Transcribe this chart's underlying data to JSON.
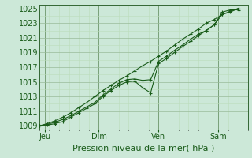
{
  "xlabel": "Pression niveau de la mer( hPa )",
  "bg_color": "#cce8d8",
  "plot_bg_color": "#cce8d8",
  "grid_major_color": "#99bb99",
  "grid_minor_color": "#bbddbb",
  "line_color": "#1a5c1a",
  "ylim": [
    1008.5,
    1025.5
  ],
  "yticks": [
    1009,
    1011,
    1013,
    1015,
    1017,
    1019,
    1021,
    1023,
    1025
  ],
  "xlim": [
    0,
    10.5
  ],
  "xtick_labels": [
    "Jeu",
    "Dim",
    "Ven",
    "Sam"
  ],
  "xtick_positions": [
    0.3,
    3.0,
    6.0,
    9.0
  ],
  "vline_positions": [
    0.3,
    3.0,
    6.0,
    9.0
  ],
  "line1_x": [
    0.0,
    0.4,
    0.8,
    1.2,
    1.6,
    2.0,
    2.4,
    2.8,
    3.2,
    3.6,
    4.0,
    4.4,
    4.8,
    5.2,
    5.6,
    6.0,
    6.4,
    6.8,
    7.2,
    7.6,
    8.0,
    8.4,
    8.8,
    9.2,
    9.6,
    10.0
  ],
  "line1_y": [
    1009.0,
    1009.1,
    1009.3,
    1009.6,
    1010.2,
    1010.8,
    1011.4,
    1012.0,
    1013.0,
    1013.8,
    1014.5,
    1015.0,
    1015.1,
    1014.2,
    1013.5,
    1017.5,
    1018.2,
    1019.0,
    1019.8,
    1020.5,
    1021.3,
    1022.0,
    1022.8,
    1024.5,
    1024.8,
    1024.8
  ],
  "line2_x": [
    0.0,
    0.4,
    0.8,
    1.2,
    1.6,
    2.0,
    2.4,
    2.8,
    3.2,
    3.6,
    4.0,
    4.4,
    4.8,
    5.2,
    5.6,
    6.0,
    6.4,
    6.8,
    7.2,
    7.6,
    8.0,
    8.4,
    8.8,
    9.2,
    9.6,
    10.0
  ],
  "line2_y": [
    1009.0,
    1009.2,
    1009.5,
    1009.9,
    1010.4,
    1011.0,
    1011.6,
    1012.2,
    1013.2,
    1014.0,
    1014.8,
    1015.3,
    1015.4,
    1015.2,
    1015.3,
    1017.8,
    1018.5,
    1019.3,
    1020.0,
    1020.8,
    1021.5,
    1022.0,
    1022.8,
    1024.2,
    1024.5,
    1025.0
  ],
  "line3_x": [
    0.0,
    0.4,
    0.8,
    1.2,
    1.6,
    2.0,
    2.4,
    2.8,
    3.2,
    3.6,
    4.0,
    4.4,
    4.8,
    5.2,
    5.6,
    6.0,
    6.4,
    6.8,
    7.2,
    7.6,
    8.0,
    8.4,
    8.8,
    9.2,
    9.6,
    10.0
  ],
  "line3_y": [
    1009.0,
    1009.3,
    1009.7,
    1010.2,
    1010.8,
    1011.5,
    1012.2,
    1013.0,
    1013.8,
    1014.5,
    1015.2,
    1015.8,
    1016.5,
    1017.2,
    1017.8,
    1018.5,
    1019.2,
    1020.0,
    1020.8,
    1021.5,
    1022.2,
    1023.0,
    1023.5,
    1024.2,
    1024.6,
    1025.0
  ],
  "font_size": 7,
  "label_font_size": 8,
  "tick_color": "#1a5c1a",
  "figsize": [
    3.2,
    2.0
  ],
  "dpi": 100
}
